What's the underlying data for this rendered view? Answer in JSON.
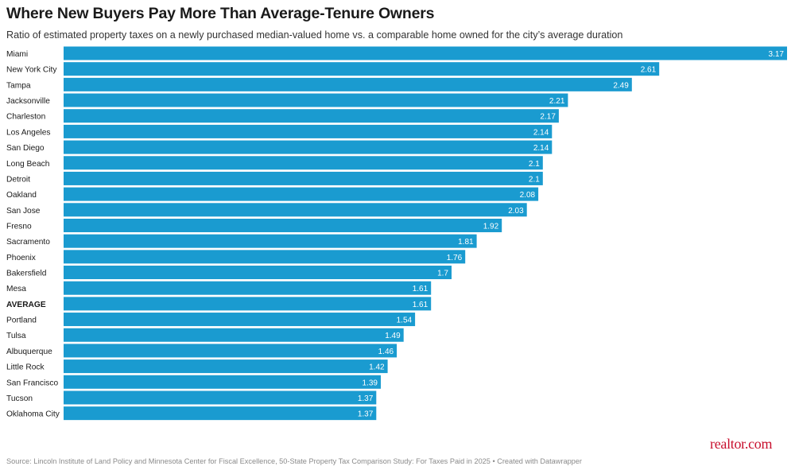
{
  "header": {
    "title": "Where New Buyers Pay More Than Average-Tenure Owners",
    "subtitle": "Ratio of estimated property taxes on a newly purchased median-valued home vs. a comparable home owned for the city’s average duration"
  },
  "footer": {
    "source": "Source: Lincoln Institute of Land Policy and Minnesota Center for Fiscal Excellence, 50-State Property Tax Comparison Study: For Taxes Paid in 2025 • Created with Datawrapper",
    "logo_text": "realtor.com"
  },
  "colors": {
    "bar": "#1a9bd0",
    "label_inside": "#ffffff",
    "category_text": "#1a1a1a"
  },
  "chart_data": {
    "type": "bar",
    "orientation": "horizontal",
    "categories": [
      "Miami",
      "New York City",
      "Tampa",
      "Jacksonville",
      "Charleston",
      "Los Angeles",
      "San Diego",
      "Long Beach",
      "Detroit",
      "Oakland",
      "San Jose",
      "Fresno",
      "Sacramento",
      "Phoenix",
      "Bakersfield",
      "Mesa",
      "AVERAGE",
      "Portland",
      "Tulsa",
      "Albuquerque",
      "Little Rock",
      "San Francisco",
      "Tucson",
      "Oklahoma City"
    ],
    "values": [
      3.17,
      2.61,
      2.49,
      2.21,
      2.17,
      2.14,
      2.14,
      2.1,
      2.1,
      2.08,
      2.03,
      1.92,
      1.81,
      1.76,
      1.7,
      1.61,
      1.61,
      1.54,
      1.49,
      1.46,
      1.42,
      1.39,
      1.37,
      1.37
    ],
    "value_labels": [
      "3.17",
      "2.61",
      "2.49",
      "2.21",
      "2.17",
      "2.14",
      "2.14",
      "2.1",
      "2.1",
      "2.08",
      "2.03",
      "1.92",
      "1.81",
      "1.76",
      "1.7",
      "1.61",
      "1.61",
      "1.54",
      "1.49",
      "1.46",
      "1.42",
      "1.39",
      "1.37",
      "1.37"
    ],
    "highlighted_category": "AVERAGE",
    "xlim": [
      0,
      3.17
    ],
    "grid": false,
    "legend": "none",
    "title": "Where New Buyers Pay More Than Average-Tenure Owners",
    "subtitle": "Ratio of estimated property taxes on a newly purchased median-valued home vs. a comparable home owned for the city’s average duration"
  }
}
